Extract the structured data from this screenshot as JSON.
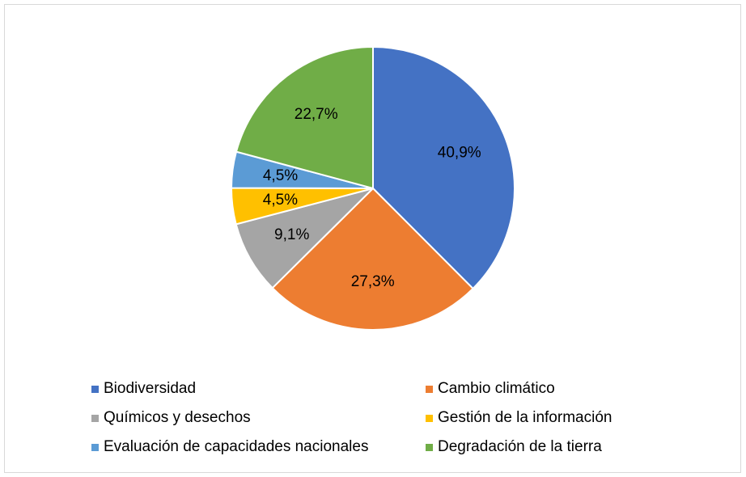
{
  "chart_data": {
    "type": "pie",
    "title": "",
    "start_angle_deg": 0,
    "direction": "clockwise",
    "legend_position": "bottom",
    "slices": [
      {
        "label": "Biodiversidad",
        "value": 40.9,
        "display": "40,9%",
        "color": "#4472C4"
      },
      {
        "label": "Cambio climático",
        "value": 27.3,
        "display": "27,3%",
        "color": "#ED7D31"
      },
      {
        "label": "Químicos y desechos",
        "value": 9.1,
        "display": "9,1%",
        "color": "#A5A5A5"
      },
      {
        "label": "Gestión de la información",
        "value": 4.5,
        "display": "4,5%",
        "color": "#FFC000"
      },
      {
        "label": "Evaluación de capacidades nacionales",
        "value": 4.5,
        "display": "4,5%",
        "color": "#5B9BD5"
      },
      {
        "label": "Degradación de la tierra",
        "value": 22.7,
        "display": "22,7%",
        "color": "#70AD47"
      }
    ]
  },
  "legend": {
    "items": [
      {
        "label": "Biodiversidad",
        "color": "#4472C4"
      },
      {
        "label": "Cambio climático",
        "color": "#ED7D31"
      },
      {
        "label": "Químicos y desechos",
        "color": "#A5A5A5"
      },
      {
        "label": "Gestión de la información",
        "color": "#FFC000"
      },
      {
        "label": "Evaluación de capacidades nacionales",
        "color": "#5B9BD5"
      },
      {
        "label": "Degradación de la tierra",
        "color": "#70AD47"
      }
    ]
  }
}
